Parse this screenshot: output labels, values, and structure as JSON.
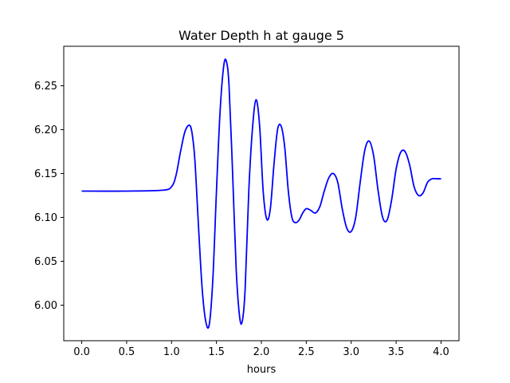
{
  "chart_data": {
    "type": "line",
    "title": "Water Depth h at gauge 5",
    "xlabel": "hours",
    "ylabel": "",
    "xlim": [
      -0.2,
      4.2
    ],
    "ylim": [
      5.9595,
      6.295
    ],
    "x_ticks": [
      0.0,
      0.5,
      1.0,
      1.5,
      2.0,
      2.5,
      3.0,
      3.5,
      4.0
    ],
    "x_tick_labels": [
      "0.0",
      "0.5",
      "1.0",
      "1.5",
      "2.0",
      "2.5",
      "3.0",
      "3.5",
      "4.0"
    ],
    "y_ticks": [
      6.0,
      6.05,
      6.1,
      6.15,
      6.2,
      6.25
    ],
    "y_tick_labels": [
      "6.00",
      "6.05",
      "6.10",
      "6.15",
      "6.20",
      "6.25"
    ],
    "grid": false,
    "legend": "none",
    "series": [
      {
        "color": "#0000ff",
        "x": [
          0.0,
          0.5,
          0.9,
          1.0,
          1.05,
          1.1,
          1.15,
          1.2,
          1.23,
          1.26,
          1.3,
          1.34,
          1.38,
          1.42,
          1.46,
          1.5,
          1.54,
          1.58,
          1.61,
          1.64,
          1.68,
          1.72,
          1.76,
          1.79,
          1.82,
          1.86,
          1.9,
          1.94,
          1.98,
          2.02,
          2.06,
          2.1,
          2.14,
          2.18,
          2.22,
          2.26,
          2.3,
          2.34,
          2.38,
          2.42,
          2.46,
          2.5,
          2.55,
          2.6,
          2.65,
          2.7,
          2.75,
          2.8,
          2.85,
          2.9,
          2.95,
          3.0,
          3.05,
          3.1,
          3.15,
          3.2,
          3.25,
          3.3,
          3.35,
          3.4,
          3.45,
          3.5,
          3.55,
          3.6,
          3.65,
          3.7,
          3.75,
          3.8,
          3.85,
          3.9,
          3.95,
          4.0
        ],
        "y": [
          6.13,
          6.13,
          6.131,
          6.135,
          6.148,
          6.175,
          6.198,
          6.205,
          6.195,
          6.165,
          6.09,
          6.02,
          5.982,
          5.978,
          6.03,
          6.13,
          6.22,
          6.272,
          6.278,
          6.25,
          6.15,
          6.04,
          5.985,
          5.983,
          6.02,
          6.13,
          6.2,
          6.234,
          6.205,
          6.13,
          6.098,
          6.11,
          6.16,
          6.2,
          6.204,
          6.18,
          6.13,
          6.1,
          6.094,
          6.097,
          6.105,
          6.11,
          6.108,
          6.105,
          6.112,
          6.13,
          6.145,
          6.15,
          6.14,
          6.11,
          6.088,
          6.084,
          6.1,
          6.14,
          6.176,
          6.187,
          6.17,
          6.13,
          6.1,
          6.097,
          6.12,
          6.155,
          6.174,
          6.175,
          6.16,
          6.135,
          6.125,
          6.128,
          6.14,
          6.144,
          6.144,
          6.144
        ]
      }
    ]
  }
}
